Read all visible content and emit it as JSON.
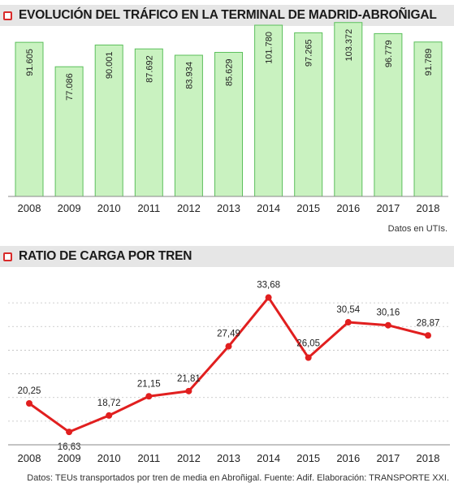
{
  "colors": {
    "bar_fill": "#c9f2c0",
    "bar_stroke": "#5cbf5c",
    "line": "#e11f1f",
    "icon": "#d92b2b",
    "header_bg": "#e6e6e6",
    "grid": "#bfbfbf"
  },
  "icons": {
    "section_marker": "red-square-outline-icon"
  },
  "chart_data": [
    {
      "type": "bar",
      "title": "EVOLUCIÓN DEL TRÁFICO EN LA TERMINAL DE MADRID-ABROÑIGAL",
      "categories": [
        "2008",
        "2009",
        "2010",
        "2011",
        "2012",
        "2013",
        "2014",
        "2015",
        "2016",
        "2017",
        "2018"
      ],
      "values": [
        91605,
        77086,
        90001,
        87692,
        83934,
        85629,
        101780,
        97265,
        103372,
        96779,
        91789
      ],
      "value_labels": [
        "91.605",
        "77.086",
        "90.001",
        "87.692",
        "83.934",
        "85.629",
        "101.780",
        "97.265",
        "103.372",
        "96.779",
        "91.789"
      ],
      "ylim": [
        0,
        110000
      ],
      "note": "Datos en UTIs.",
      "grid": false
    },
    {
      "type": "line",
      "title": "RATIO DE CARGA POR TREN",
      "categories": [
        "2008",
        "2009",
        "2010",
        "2011",
        "2012",
        "2013",
        "2014",
        "2015",
        "2016",
        "2017",
        "2018"
      ],
      "values": [
        20.25,
        16.63,
        18.72,
        21.15,
        21.81,
        27.49,
        33.68,
        26.05,
        30.54,
        30.16,
        28.87
      ],
      "value_labels": [
        "20,25",
        "16,63",
        "18,72",
        "21,15",
        "21,81",
        "27,49",
        "33,68",
        "26,05",
        "30,54",
        "30,16",
        "28,87"
      ],
      "ylim": [
        15,
        36
      ],
      "grid": true,
      "footer": "Datos: TEUs transportados por tren de media en Abroñigal. Fuente: Adif. Elaboración: TRANSPORTE XXI."
    }
  ]
}
